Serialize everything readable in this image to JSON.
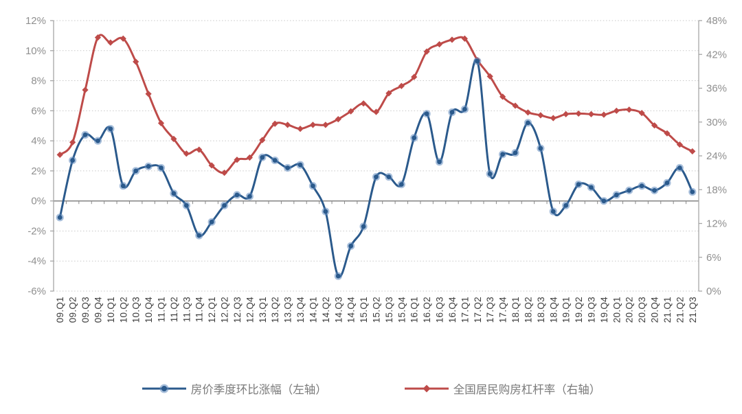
{
  "chart_data": {
    "type": "line",
    "title": "",
    "categories": [
      "09.Q1",
      "09.Q2",
      "09.Q3",
      "09.Q4",
      "10.Q1",
      "10.Q2",
      "10.Q3",
      "10.Q4",
      "11.Q1",
      "11.Q2",
      "11.Q3",
      "11.Q4",
      "12.Q1",
      "12.Q2",
      "12.Q3",
      "12.Q4",
      "13.Q1",
      "13.Q2",
      "13.Q3",
      "13.Q4",
      "14.Q1",
      "14.Q2",
      "14.Q3",
      "14.Q4",
      "15.Q1",
      "15.Q2",
      "15.Q3",
      "15.Q4",
      "16.Q1",
      "16.Q2",
      "16.Q3",
      "16.Q4",
      "17.Q1",
      "17.Q2",
      "17.Q3",
      "17.Q4",
      "18.Q1",
      "18.Q2",
      "18.Q3",
      "18.Q4",
      "19.Q1",
      "19.Q2",
      "19.Q3",
      "19.Q4",
      "20.Q1",
      "20.Q2",
      "20.Q3",
      "20.Q4",
      "21.Q1",
      "21.Q2",
      "21.Q3"
    ],
    "series": [
      {
        "name": "房价季度环比涨幅（左轴）",
        "axis": "left",
        "marker": "circle",
        "color": "#2b5a8c",
        "halo_color": "rgba(96,139,190,0.55)",
        "values": [
          -1.1,
          2.7,
          4.4,
          4.0,
          4.8,
          1.0,
          2.0,
          2.3,
          2.2,
          0.5,
          -0.3,
          -2.3,
          -1.4,
          -0.3,
          0.4,
          0.3,
          2.9,
          2.7,
          2.2,
          2.4,
          1.0,
          -0.7,
          -5.0,
          -3.0,
          -1.7,
          1.6,
          1.6,
          1.1,
          4.2,
          5.8,
          2.6,
          5.9,
          6.1,
          9.3,
          1.8,
          3.1,
          3.2,
          5.2,
          3.5,
          -0.7,
          -0.3,
          1.1,
          0.9,
          0.0,
          0.4,
          0.7,
          1.0,
          0.7,
          1.2,
          2.2,
          0.6
        ]
      },
      {
        "name": "全国居民购房杠杆率（右轴）",
        "axis": "right",
        "marker": "diamond",
        "color": "#be4b49",
        "halo_color": "rgba(190,75,73,0.35)",
        "values": [
          24.2,
          26.4,
          35.7,
          45.0,
          44.1,
          44.8,
          40.7,
          35.0,
          29.8,
          27.0,
          24.4,
          25.1,
          22.3,
          21.0,
          23.3,
          23.7,
          26.8,
          29.7,
          29.5,
          28.8,
          29.5,
          29.5,
          30.5,
          31.9,
          33.3,
          31.8,
          35.1,
          36.4,
          38.0,
          42.5,
          43.8,
          44.6,
          44.8,
          41.0,
          38.1,
          34.5,
          32.9,
          31.7,
          31.2,
          30.7,
          31.4,
          31.5,
          31.4,
          31.3,
          32.0,
          32.2,
          31.6,
          29.4,
          28.0,
          26.0,
          24.8
        ]
      }
    ],
    "left_axis": {
      "min": -6,
      "max": 12,
      "step": 2,
      "tick_values": [
        12,
        10,
        8,
        6,
        4,
        2,
        0,
        -2,
        -4,
        -6
      ],
      "tick_labels": [
        "12%",
        "10%",
        "8%",
        "6%",
        "4%",
        "2%",
        "0%",
        "-2%",
        "-4%",
        "-6%"
      ]
    },
    "right_axis": {
      "min": 0,
      "max": 48,
      "step": 6,
      "tick_values": [
        48,
        42,
        36,
        30,
        24,
        18,
        12,
        6,
        0
      ],
      "tick_labels": [
        "48%",
        "42%",
        "36%",
        "30%",
        "24%",
        "18%",
        "12%",
        "6%",
        "0%"
      ]
    },
    "grid": "horizontal dotted lines at left-axis 2% steps, solid line at 0%",
    "legend_position": "bottom-center",
    "x_labels_rotation": -90
  },
  "style": {
    "gridline_color": "#c7c7c7",
    "zero_line_color": "#8a8a8a",
    "axis_line_color": "#a6a6a6",
    "tick_color": "#8a8a8a",
    "background": "#ffffff"
  }
}
